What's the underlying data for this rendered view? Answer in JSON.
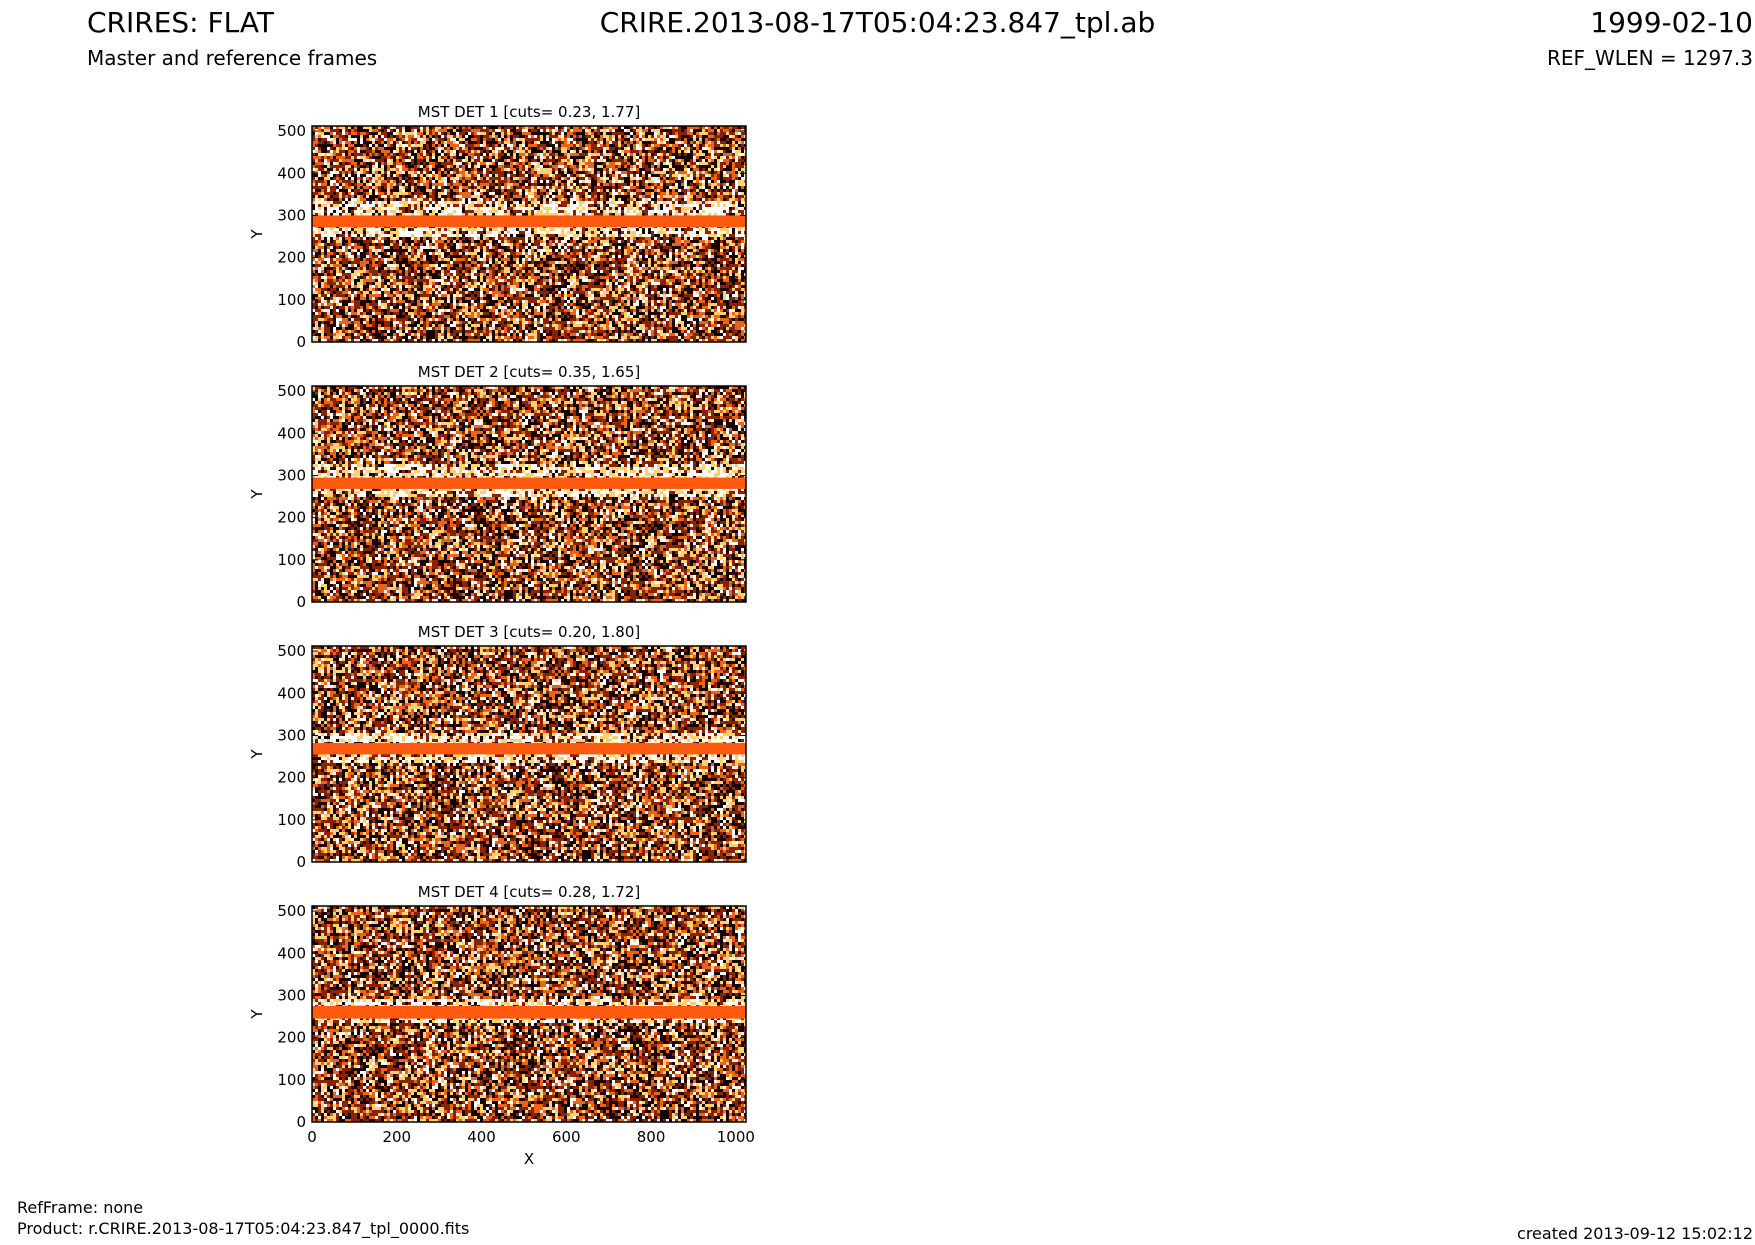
{
  "header": {
    "title_left": "CRIRES: FLAT",
    "subtitle_left": "Master and reference frames",
    "title_center": "CRIRE.2013-08-17T05:04:23.847_tpl.ab",
    "title_right": "1999-02-10",
    "subtitle_right": "REF_WLEN = 1297.3"
  },
  "footer": {
    "refframe": "RefFrame: none",
    "product": "Product: r.CRIRE.2013-08-17T05:04:23.847_tpl_0000.fits",
    "created": "created 2013-09-12 15:02:12"
  },
  "colors": {
    "stripe": "#ff5a10",
    "dark": "#140000",
    "mid": "#8a2200",
    "orange": "#e86418",
    "light": "#ffd070",
    "white": "#ffffff"
  },
  "chart_data": [
    {
      "type": "heatmap",
      "title": "MST DET 1 [cuts= 0.23, 1.77]",
      "xlabel": "",
      "ylabel": "Y",
      "xlim": [
        0,
        1024
      ],
      "ylim": [
        0,
        512
      ],
      "xticks": [],
      "yticks": [
        0,
        100,
        200,
        300,
        400,
        500
      ],
      "stripe_y": [
        272,
        300
      ],
      "bright_band_y": [
        255,
        340
      ]
    },
    {
      "type": "heatmap",
      "title": "MST DET 2 [cuts= 0.35, 1.65]",
      "xlabel": "",
      "ylabel": "Y",
      "xlim": [
        0,
        1024
      ],
      "ylim": [
        0,
        512
      ],
      "xticks": [],
      "yticks": [
        0,
        100,
        200,
        300,
        400,
        500
      ],
      "stripe_y": [
        268,
        295
      ],
      "bright_band_y": [
        250,
        330
      ]
    },
    {
      "type": "heatmap",
      "title": "MST DET 3 [cuts= 0.20, 1.80]",
      "xlabel": "",
      "ylabel": "Y",
      "xlim": [
        0,
        1024
      ],
      "ylim": [
        0,
        512
      ],
      "xticks": [],
      "yticks": [
        0,
        100,
        200,
        300,
        400,
        500
      ],
      "stripe_y": [
        255,
        282
      ],
      "bright_band_y": [
        240,
        310
      ]
    },
    {
      "type": "heatmap",
      "title": "MST DET 4 [cuts= 0.28, 1.72]",
      "xlabel": "X",
      "ylabel": "Y",
      "xlim": [
        0,
        1024
      ],
      "ylim": [
        0,
        512
      ],
      "xticks": [
        0,
        200,
        400,
        600,
        800,
        1000
      ],
      "yticks": [
        0,
        100,
        200,
        300,
        400,
        500
      ],
      "stripe_y": [
        245,
        275
      ],
      "bright_band_y": [
        235,
        295
      ]
    }
  ]
}
